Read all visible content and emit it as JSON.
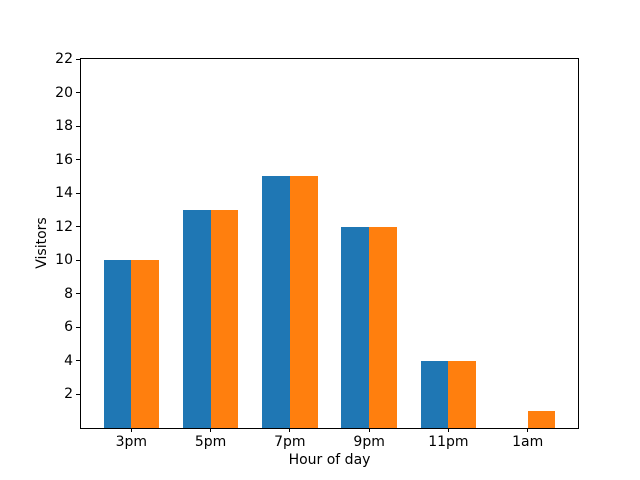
{
  "chart_data": {
    "type": "bar",
    "title": "",
    "xlabel": "Hour of day",
    "ylabel": "Visitors",
    "categories": [
      "3pm",
      "5pm",
      "7pm",
      "9pm",
      "11pm",
      "1am"
    ],
    "series": [
      {
        "name": "series-1",
        "color": "#1f77b4",
        "values": [
          10,
          13,
          15,
          12,
          4,
          0
        ]
      },
      {
        "name": "series-2",
        "color": "#ff7f0e",
        "values": [
          10,
          13,
          15,
          12,
          4,
          1
        ]
      }
    ],
    "ylim": [
      0,
      22
    ],
    "yticks": [
      2,
      4,
      6,
      8,
      10,
      12,
      14,
      16,
      18,
      20,
      22
    ],
    "xlim": [
      -0.635,
      5.635
    ],
    "bar_width": 0.35,
    "grid": false,
    "legend": "none",
    "background": "#ffffff",
    "spine_color": "#000000"
  }
}
